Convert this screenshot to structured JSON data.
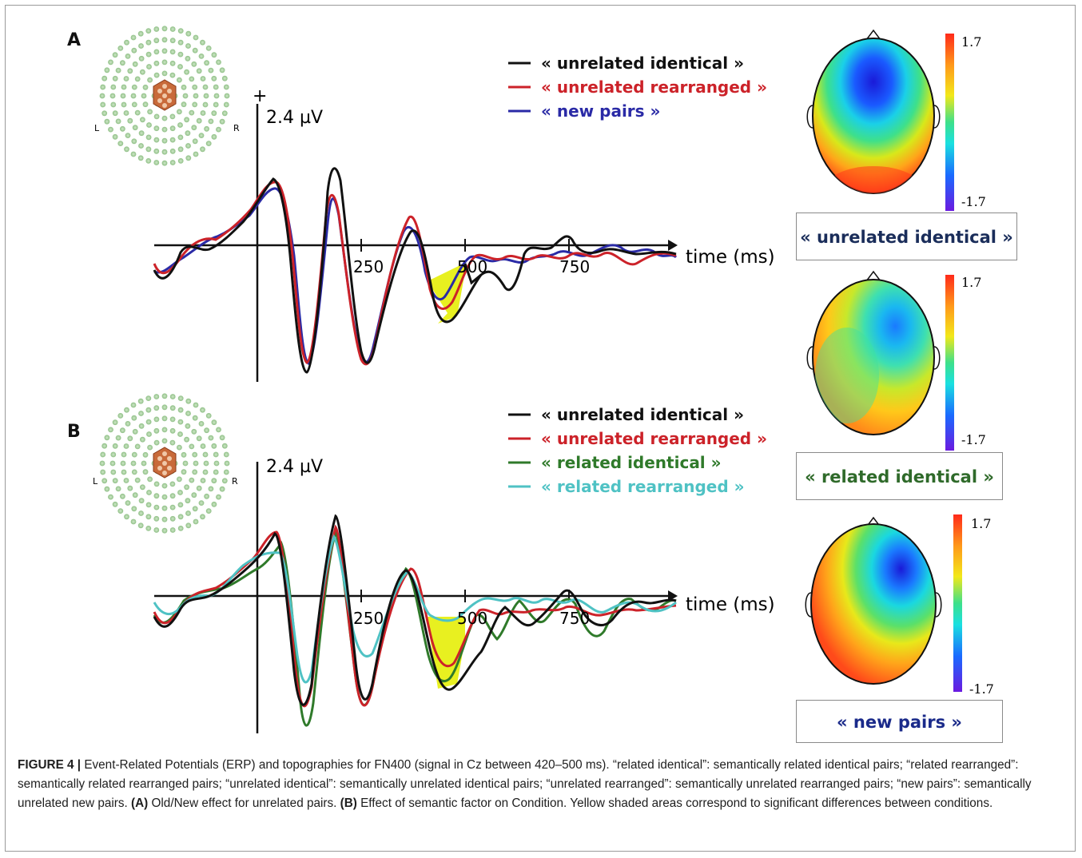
{
  "panel_a": {
    "letter": "A",
    "amplitude_label": "2.4 µV",
    "plus_sign": "+",
    "time_label": "time (ms)",
    "ticks": [
      "250",
      "500",
      "750"
    ],
    "legend": [
      {
        "label": "« unrelated identical »",
        "color": "#111111"
      },
      {
        "label": "« unrelated rearranged »",
        "color": "#cc2229"
      },
      {
        "label": "« new pairs »",
        "color": "#2a2aa6"
      }
    ]
  },
  "panel_b": {
    "letter": "B",
    "amplitude_label": "2.4 µV",
    "time_label": "time (ms)",
    "ticks": [
      "250",
      "500",
      "750"
    ],
    "legend": [
      {
        "label": "« unrelated identical »",
        "color": "#111111"
      },
      {
        "label": "« unrelated rearranged »",
        "color": "#cc2229"
      },
      {
        "label": "« related identical »",
        "color": "#2f7a2a"
      },
      {
        "label": "« related rearranged »",
        "color": "#4fc2c4"
      }
    ]
  },
  "electrode_map": {
    "left": "L",
    "right": "R"
  },
  "topographies": [
    {
      "label": "« unrelated identical »",
      "max": "1.7",
      "min": "-1.7",
      "label_color": "#1a2d5a"
    },
    {
      "label": "« related identical »",
      "max": "1.7",
      "min": "-1.7",
      "label_color": "#2f6a2a"
    },
    {
      "label": "« new pairs »",
      "max": "1.7",
      "min": "-1.7",
      "label_color": "#1a2a8a"
    }
  ],
  "caption": {
    "figure_label": "FIGURE 4 |",
    "text_1": " Event-Related Potentials (ERP) and topographies for FN400 (signal in Cz between 420–500 ms). “related identical”: semantically related identical pairs; “related rearranged”: semantically related rearranged pairs; “unrelated identical”: semantically unrelated identical pairs; “unrelated rearranged”: semantically unrelated rearranged pairs; “new pairs”: semantically unrelated new pairs. ",
    "a_label": "(A)",
    "text_2": " Old/New effect for unrelated pairs. ",
    "b_label": "(B)",
    "text_3": " Effect of semantic factor on Condition. Yellow shaded areas correspond to significant differences between conditions."
  }
}
